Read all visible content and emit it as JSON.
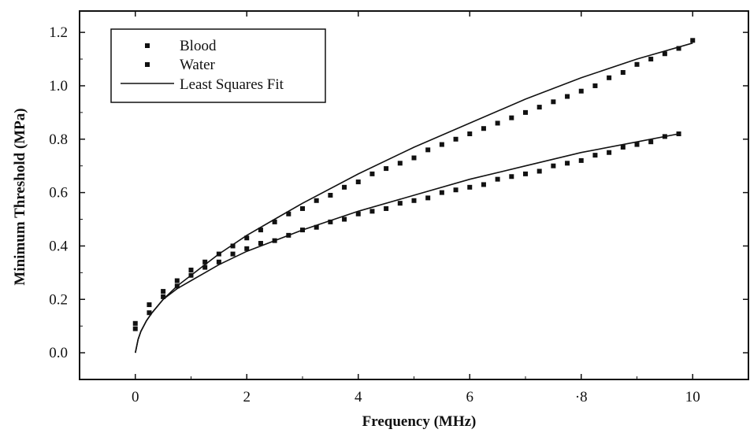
{
  "chart_data": {
    "type": "scatter",
    "title": "",
    "xlabel": "Frequency  (MHz)",
    "ylabel": "Minimum Threshold (MPa)",
    "xlim": [
      -1,
      11
    ],
    "ylim": [
      -0.1,
      1.28
    ],
    "xticks": [
      0,
      2,
      4,
      6,
      8,
      10
    ],
    "xtick_labels": [
      "0",
      "2",
      "4",
      "6",
      "·8",
      "10"
    ],
    "yticks": [
      0.0,
      0.2,
      0.4,
      0.6,
      0.8,
      1.0,
      1.2
    ],
    "ytick_labels": [
      "0.0",
      "0.2",
      "0.4",
      "0.6",
      "0.8",
      "1.0",
      "1.2"
    ],
    "grid": false,
    "legend_position": "top-left",
    "series": [
      {
        "name": "Blood",
        "kind": "markers",
        "marker": "square",
        "color": "#111111",
        "x": [
          0.0,
          0.25,
          0.5,
          0.75,
          1.0,
          1.25,
          1.5,
          1.75,
          2.0,
          2.25,
          2.5,
          2.75,
          3.0,
          3.25,
          3.5,
          3.75,
          4.0,
          4.25,
          4.5,
          4.75,
          5.0,
          5.25,
          5.5,
          5.75,
          6.0,
          6.25,
          6.5,
          6.75,
          7.0,
          7.25,
          7.5,
          7.75,
          8.0,
          8.25,
          8.5,
          8.75,
          9.0,
          9.25,
          9.5,
          9.75,
          10.0
        ],
        "y": [
          0.11,
          0.18,
          0.23,
          0.27,
          0.31,
          0.34,
          0.37,
          0.4,
          0.43,
          0.46,
          0.49,
          0.52,
          0.54,
          0.57,
          0.59,
          0.62,
          0.64,
          0.67,
          0.69,
          0.71,
          0.73,
          0.76,
          0.78,
          0.8,
          0.82,
          0.84,
          0.86,
          0.88,
          0.9,
          0.92,
          0.94,
          0.96,
          0.98,
          1.0,
          1.03,
          1.05,
          1.08,
          1.1,
          1.12,
          1.14,
          1.17
        ]
      },
      {
        "name": "Water",
        "kind": "markers",
        "marker": "square",
        "color": "#111111",
        "x": [
          0.0,
          0.25,
          0.5,
          0.75,
          1.0,
          1.25,
          1.5,
          1.75,
          2.0,
          2.25,
          2.5,
          2.75,
          3.0,
          3.25,
          3.5,
          3.75,
          4.0,
          4.25,
          4.5,
          4.75,
          5.0,
          5.25,
          5.5,
          5.75,
          6.0,
          6.25,
          6.5,
          6.75,
          7.0,
          7.25,
          7.5,
          7.75,
          8.0,
          8.25,
          8.5,
          8.75,
          9.0,
          9.25,
          9.5,
          9.75
        ],
        "y": [
          0.09,
          0.15,
          0.21,
          0.25,
          0.29,
          0.32,
          0.34,
          0.37,
          0.39,
          0.41,
          0.42,
          0.44,
          0.46,
          0.47,
          0.49,
          0.5,
          0.52,
          0.53,
          0.54,
          0.56,
          0.57,
          0.58,
          0.6,
          0.61,
          0.62,
          0.63,
          0.65,
          0.66,
          0.67,
          0.68,
          0.7,
          0.71,
          0.72,
          0.74,
          0.75,
          0.77,
          0.78,
          0.79,
          0.81,
          0.82
        ]
      },
      {
        "name": "Least Squares Fit",
        "kind": "line",
        "color": "#111111",
        "x": [
          0.0,
          0.05,
          0.1,
          0.2,
          0.3,
          0.5,
          0.75,
          1.0,
          1.5,
          2.0,
          2.5,
          3.0,
          4.0,
          5.0,
          6.0,
          7.0,
          8.0,
          9.0,
          10.0
        ],
        "y": [
          0.0,
          0.05,
          0.08,
          0.12,
          0.15,
          0.2,
          0.25,
          0.29,
          0.37,
          0.44,
          0.5,
          0.56,
          0.67,
          0.77,
          0.86,
          0.95,
          1.03,
          1.1,
          1.16
        ]
      },
      {
        "name": "Least Squares Fit",
        "kind": "line",
        "color": "#111111",
        "x": [
          0.0,
          0.05,
          0.1,
          0.2,
          0.3,
          0.5,
          0.75,
          1.0,
          1.5,
          2.0,
          2.5,
          3.0,
          4.0,
          5.0,
          6.0,
          7.0,
          8.0,
          9.0,
          9.75
        ],
        "y": [
          0.0,
          0.05,
          0.08,
          0.12,
          0.15,
          0.2,
          0.24,
          0.27,
          0.33,
          0.38,
          0.42,
          0.46,
          0.53,
          0.59,
          0.65,
          0.7,
          0.75,
          0.79,
          0.82
        ]
      }
    ],
    "legend": [
      {
        "label": "Blood",
        "symbol": "square"
      },
      {
        "label": "Water",
        "symbol": "square"
      },
      {
        "label": "Least Squares Fit",
        "symbol": "line"
      }
    ]
  }
}
